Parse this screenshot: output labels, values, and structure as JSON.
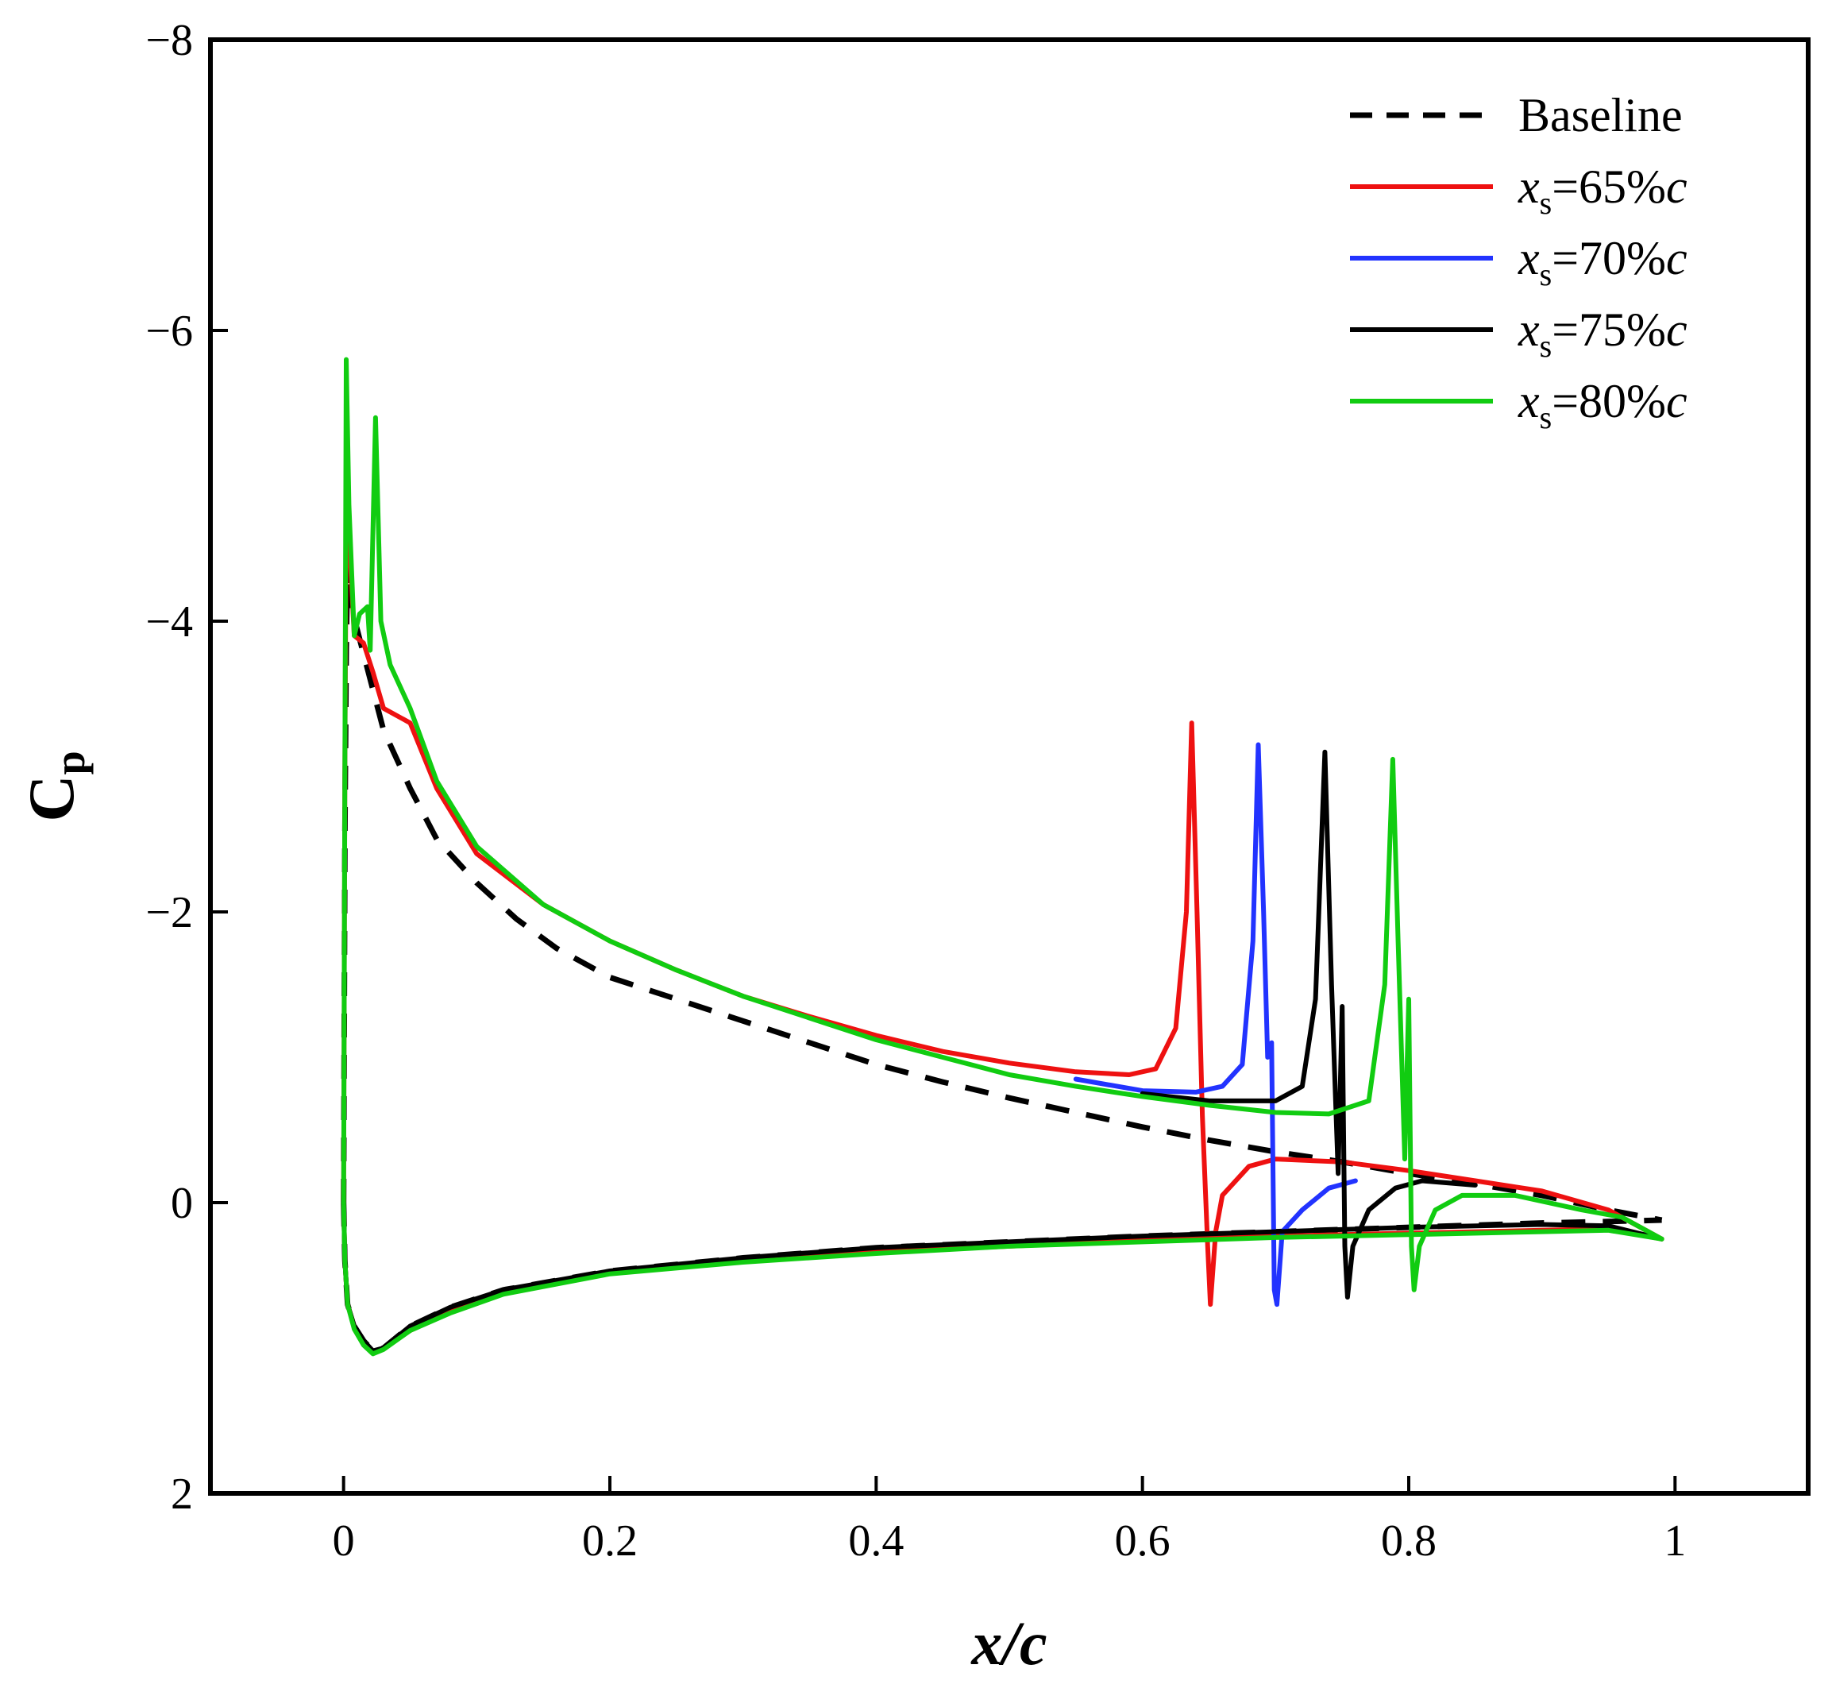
{
  "chart_data": {
    "type": "line",
    "xlabel": "x/c",
    "ylabel": {
      "main": "C",
      "sub": "p"
    },
    "xlim": [
      -0.1,
      1.1
    ],
    "ylim": [
      2,
      -8
    ],
    "y_inverted": true,
    "xticks": [
      0,
      0.2,
      0.4,
      0.6,
      0.8,
      1
    ],
    "xtick_labels": [
      "0",
      "0.2",
      "0.4",
      "0.6",
      "0.8",
      "1"
    ],
    "yticks": [
      -8,
      -6,
      -4,
      -2,
      0,
      2
    ],
    "ytick_labels": [
      "−8",
      "−6",
      "−4",
      "−2",
      "0",
      "2"
    ],
    "legend": {
      "position": "top-right",
      "entries": [
        {
          "label": "Baseline",
          "color": "#000000",
          "dash": true
        },
        {
          "label_main": "x",
          "label_sub": "s",
          "label_value": "=65%",
          "label_unit": "c",
          "color": "#ee1111",
          "dash": false
        },
        {
          "label_main": "x",
          "label_sub": "s",
          "label_value": "=70%",
          "label_unit": "c",
          "color": "#2233ff",
          "dash": false
        },
        {
          "label_main": "x",
          "label_sub": "s",
          "label_value": "=75%",
          "label_unit": "c",
          "color": "#000000",
          "dash": false
        },
        {
          "label_main": "x",
          "label_sub": "s",
          "label_value": "=80%",
          "label_unit": "c",
          "color": "#11cc11",
          "dash": false
        }
      ]
    },
    "series": [
      {
        "name": "Baseline",
        "color": "#000000",
        "dash": true,
        "upper": [
          [
            0,
            0
          ],
          [
            0.001,
            -2.5
          ],
          [
            0.002,
            -3.8
          ],
          [
            0.003,
            -4.4
          ],
          [
            0.004,
            -4.15
          ],
          [
            0.01,
            -3.95
          ],
          [
            0.02,
            -3.6
          ],
          [
            0.03,
            -3.25
          ],
          [
            0.05,
            -2.85
          ],
          [
            0.07,
            -2.5
          ],
          [
            0.1,
            -2.2
          ],
          [
            0.13,
            -1.95
          ],
          [
            0.16,
            -1.75
          ],
          [
            0.2,
            -1.55
          ],
          [
            0.25,
            -1.4
          ],
          [
            0.3,
            -1.25
          ],
          [
            0.35,
            -1.1
          ],
          [
            0.4,
            -0.95
          ],
          [
            0.45,
            -0.83
          ],
          [
            0.5,
            -0.72
          ],
          [
            0.55,
            -0.62
          ],
          [
            0.6,
            -0.52
          ],
          [
            0.65,
            -0.43
          ],
          [
            0.7,
            -0.35
          ],
          [
            0.75,
            -0.28
          ],
          [
            0.8,
            -0.2
          ],
          [
            0.85,
            -0.13
          ],
          [
            0.9,
            -0.05
          ],
          [
            0.95,
            0.05
          ],
          [
            0.99,
            0.12
          ]
        ],
        "lower": [
          [
            0,
            0
          ],
          [
            0.001,
            0.4
          ],
          [
            0.003,
            0.7
          ],
          [
            0.008,
            0.85
          ],
          [
            0.015,
            0.95
          ],
          [
            0.022,
            1.02
          ],
          [
            0.03,
            1.0
          ],
          [
            0.05,
            0.85
          ],
          [
            0.08,
            0.72
          ],
          [
            0.12,
            0.6
          ],
          [
            0.2,
            0.47
          ],
          [
            0.3,
            0.38
          ],
          [
            0.4,
            0.31
          ],
          [
            0.5,
            0.27
          ],
          [
            0.6,
            0.23
          ],
          [
            0.7,
            0.2
          ],
          [
            0.8,
            0.17
          ],
          [
            0.9,
            0.14
          ],
          [
            0.95,
            0.13
          ],
          [
            0.99,
            0.12
          ]
        ]
      },
      {
        "name": "xs=65%c",
        "color": "#ee1111",
        "dash": false,
        "upper": [
          [
            0,
            0
          ],
          [
            0.001,
            -3.0
          ],
          [
            0.002,
            -4.8
          ],
          [
            0.004,
            -4.6
          ],
          [
            0.008,
            -3.9
          ],
          [
            0.015,
            -3.85
          ],
          [
            0.022,
            -3.65
          ],
          [
            0.03,
            -3.4
          ],
          [
            0.05,
            -3.3
          ],
          [
            0.07,
            -2.85
          ],
          [
            0.1,
            -2.4
          ],
          [
            0.15,
            -2.05
          ],
          [
            0.2,
            -1.8
          ],
          [
            0.25,
            -1.6
          ],
          [
            0.3,
            -1.42
          ],
          [
            0.35,
            -1.28
          ],
          [
            0.4,
            -1.15
          ],
          [
            0.45,
            -1.04
          ],
          [
            0.5,
            -0.96
          ],
          [
            0.55,
            -0.9
          ],
          [
            0.59,
            -0.88
          ],
          [
            0.61,
            -0.92
          ],
          [
            0.625,
            -1.2
          ],
          [
            0.633,
            -2.0
          ],
          [
            0.637,
            -3.3
          ],
          [
            0.641,
            -2.0
          ],
          [
            0.645,
            -0.6
          ],
          [
            0.649,
            0.3
          ],
          [
            0.651,
            0.7
          ],
          [
            0.655,
            0.2
          ],
          [
            0.66,
            -0.05
          ],
          [
            0.68,
            -0.25
          ],
          [
            0.7,
            -0.3
          ],
          [
            0.75,
            -0.28
          ],
          [
            0.8,
            -0.22
          ],
          [
            0.85,
            -0.15
          ],
          [
            0.9,
            -0.08
          ],
          [
            0.95,
            0.05
          ],
          [
            0.99,
            0.25
          ]
        ],
        "lower": [
          [
            0,
            0
          ],
          [
            0.001,
            0.4
          ],
          [
            0.003,
            0.7
          ],
          [
            0.008,
            0.85
          ],
          [
            0.015,
            0.97
          ],
          [
            0.022,
            1.03
          ],
          [
            0.03,
            1.0
          ],
          [
            0.05,
            0.88
          ],
          [
            0.08,
            0.75
          ],
          [
            0.12,
            0.62
          ],
          [
            0.2,
            0.48
          ],
          [
            0.3,
            0.4
          ],
          [
            0.4,
            0.34
          ],
          [
            0.5,
            0.3
          ],
          [
            0.6,
            0.26
          ],
          [
            0.7,
            0.23
          ],
          [
            0.8,
            0.21
          ],
          [
            0.9,
            0.19
          ],
          [
            0.95,
            0.18
          ],
          [
            0.99,
            0.25
          ]
        ]
      },
      {
        "name": "xs=70%c",
        "color": "#2233ff",
        "dash": false,
        "upper": [
          [
            0.55,
            -0.85
          ],
          [
            0.6,
            -0.77
          ],
          [
            0.64,
            -0.76
          ],
          [
            0.66,
            -0.8
          ],
          [
            0.675,
            -0.95
          ],
          [
            0.683,
            -1.8
          ],
          [
            0.687,
            -3.15
          ],
          [
            0.691,
            -2.0
          ],
          [
            0.694,
            -1.0
          ],
          [
            0.697,
            -1.1
          ],
          [
            0.699,
            0.6
          ],
          [
            0.701,
            0.7
          ],
          [
            0.705,
            0.2
          ],
          [
            0.72,
            0.05
          ],
          [
            0.74,
            -0.1
          ],
          [
            0.76,
            -0.15
          ]
        ],
        "lower": []
      },
      {
        "name": "xs=75%c",
        "color": "#000000",
        "dash": false,
        "upper": [
          [
            0.6,
            -0.75
          ],
          [
            0.65,
            -0.7
          ],
          [
            0.7,
            -0.7
          ],
          [
            0.72,
            -0.8
          ],
          [
            0.73,
            -1.4
          ],
          [
            0.737,
            -3.1
          ],
          [
            0.742,
            -1.5
          ],
          [
            0.747,
            -0.2
          ],
          [
            0.75,
            -1.35
          ],
          [
            0.752,
            0.3
          ],
          [
            0.754,
            0.65
          ],
          [
            0.758,
            0.3
          ],
          [
            0.77,
            0.05
          ],
          [
            0.79,
            -0.1
          ],
          [
            0.81,
            -0.15
          ],
          [
            0.85,
            -0.12
          ]
        ],
        "lower": [
          [
            0,
            0
          ],
          [
            0.001,
            0.4
          ],
          [
            0.003,
            0.7
          ],
          [
            0.008,
            0.85
          ],
          [
            0.015,
            0.95
          ],
          [
            0.022,
            1.02
          ],
          [
            0.03,
            1.0
          ],
          [
            0.05,
            0.85
          ],
          [
            0.08,
            0.72
          ],
          [
            0.12,
            0.6
          ],
          [
            0.2,
            0.47
          ],
          [
            0.3,
            0.38
          ],
          [
            0.4,
            0.31
          ],
          [
            0.5,
            0.27
          ],
          [
            0.6,
            0.23
          ],
          [
            0.7,
            0.2
          ],
          [
            0.8,
            0.17
          ],
          [
            0.9,
            0.15
          ],
          [
            0.95,
            0.16
          ],
          [
            0.99,
            0.25
          ]
        ]
      },
      {
        "name": "xs=80%c",
        "color": "#11cc11",
        "dash": false,
        "upper": [
          [
            0,
            0
          ],
          [
            0.001,
            -3.0
          ],
          [
            0.002,
            -5.8
          ],
          [
            0.004,
            -4.8
          ],
          [
            0.008,
            -3.9
          ],
          [
            0.012,
            -4.05
          ],
          [
            0.018,
            -4.1
          ],
          [
            0.02,
            -3.8
          ],
          [
            0.024,
            -5.4
          ],
          [
            0.028,
            -4.0
          ],
          [
            0.035,
            -3.7
          ],
          [
            0.05,
            -3.4
          ],
          [
            0.07,
            -2.9
          ],
          [
            0.1,
            -2.45
          ],
          [
            0.15,
            -2.05
          ],
          [
            0.2,
            -1.8
          ],
          [
            0.25,
            -1.6
          ],
          [
            0.3,
            -1.42
          ],
          [
            0.35,
            -1.27
          ],
          [
            0.4,
            -1.12
          ],
          [
            0.45,
            -1.0
          ],
          [
            0.5,
            -0.88
          ],
          [
            0.55,
            -0.8
          ],
          [
            0.6,
            -0.73
          ],
          [
            0.65,
            -0.67
          ],
          [
            0.7,
            -0.62
          ],
          [
            0.74,
            -0.61
          ],
          [
            0.77,
            -0.7
          ],
          [
            0.782,
            -1.5
          ],
          [
            0.788,
            -3.05
          ],
          [
            0.792,
            -1.8
          ],
          [
            0.797,
            -0.3
          ],
          [
            0.8,
            -1.4
          ],
          [
            0.802,
            0.3
          ],
          [
            0.804,
            0.6
          ],
          [
            0.808,
            0.3
          ],
          [
            0.82,
            0.05
          ],
          [
            0.84,
            -0.05
          ],
          [
            0.88,
            -0.05
          ],
          [
            0.93,
            0.05
          ],
          [
            0.96,
            0.1
          ],
          [
            0.99,
            0.25
          ]
        ],
        "lower": [
          [
            0,
            0
          ],
          [
            0.001,
            0.4
          ],
          [
            0.003,
            0.7
          ],
          [
            0.008,
            0.87
          ],
          [
            0.015,
            0.98
          ],
          [
            0.022,
            1.04
          ],
          [
            0.03,
            1.01
          ],
          [
            0.05,
            0.88
          ],
          [
            0.08,
            0.76
          ],
          [
            0.12,
            0.63
          ],
          [
            0.2,
            0.49
          ],
          [
            0.3,
            0.41
          ],
          [
            0.4,
            0.35
          ],
          [
            0.5,
            0.3
          ],
          [
            0.6,
            0.27
          ],
          [
            0.7,
            0.24
          ],
          [
            0.8,
            0.22
          ],
          [
            0.9,
            0.2
          ],
          [
            0.95,
            0.19
          ],
          [
            0.99,
            0.25
          ]
        ]
      }
    ]
  }
}
